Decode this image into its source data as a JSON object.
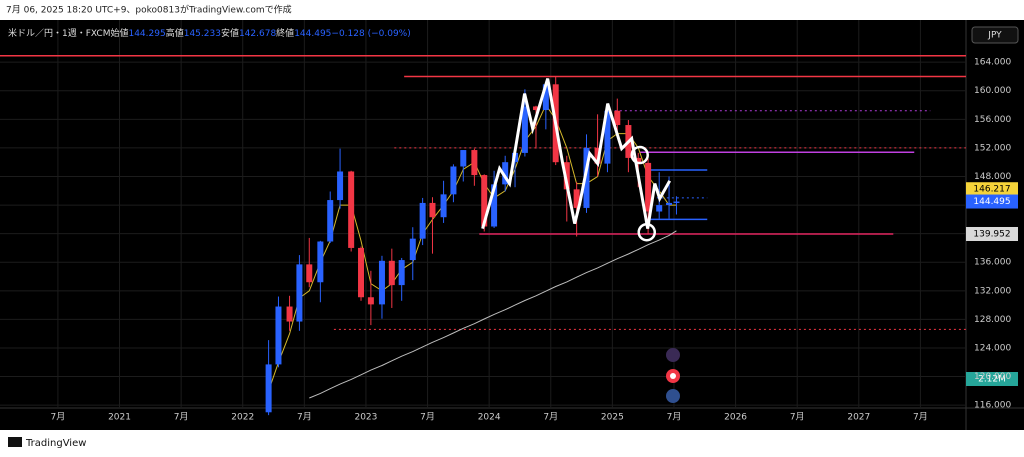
{
  "header": "7月 06, 2025 18:20 UTC+9、poko0813がTradingView.comで作成",
  "footer": "TradingView",
  "currency_button": "JPY",
  "chart_data": {
    "type": "candlestick",
    "legend": {
      "symbol": "米ドル／円・1週・FXCM",
      "open_label": "始値",
      "high_label": "高値",
      "low_label": "安値",
      "close_label": "終値",
      "change": "−0.128 (−0.09%)"
    },
    "x": [
      2022.21,
      2022.29,
      2022.38,
      2022.46,
      2022.54,
      2022.63,
      2022.71,
      2022.79,
      2022.88,
      2022.96,
      2023.04,
      2023.13,
      2023.21,
      2023.29,
      2023.38,
      2023.46,
      2023.54,
      2023.63,
      2023.71,
      2023.79,
      2023.88,
      2023.96,
      2024.04,
      2024.13,
      2024.21,
      2024.29,
      2024.38,
      2024.46,
      2024.54,
      2024.63,
      2024.71,
      2024.79,
      2024.88,
      2024.96,
      2025.04,
      2025.13,
      2025.21,
      2025.29,
      2025.38,
      2025.46,
      2025.52
    ],
    "open": [
      115.0,
      121.7,
      129.8,
      127.7,
      135.7,
      133.2,
      138.9,
      144.7,
      148.7,
      138.0,
      131.1,
      130.1,
      136.2,
      132.8,
      136.3,
      139.3,
      144.3,
      142.3,
      145.5,
      149.4,
      151.7,
      148.2,
      141.0,
      146.9,
      150.0,
      151.3,
      157.8,
      157.3,
      160.9,
      150.0,
      146.2,
      143.6,
      152.0,
      149.8,
      157.2,
      155.2,
      150.6,
      149.9,
      143.1,
      144.0,
      144.295
    ],
    "high": [
      125.1,
      131.2,
      131.3,
      137.0,
      139.4,
      139.0,
      145.9,
      151.9,
      148.8,
      138.2,
      134.8,
      136.9,
      137.9,
      136.6,
      140.9,
      145.0,
      145.1,
      147.4,
      149.7,
      151.7,
      151.9,
      148.3,
      148.8,
      150.9,
      151.97,
      160.2,
      157.9,
      161.3,
      161.95,
      150.9,
      147.2,
      153.9,
      156.7,
      158.1,
      158.9,
      155.9,
      151.3,
      150.5,
      148.6,
      148.0,
      145.233
    ],
    "low": [
      114.6,
      121.3,
      126.4,
      126.4,
      132.5,
      130.4,
      138.7,
      143.5,
      137.5,
      130.6,
      127.2,
      128.1,
      129.6,
      130.6,
      133.5,
      138.4,
      137.2,
      141.5,
      144.4,
      147.3,
      146.7,
      140.3,
      140.8,
      145.9,
      146.5,
      150.8,
      151.9,
      154.6,
      149.6,
      141.7,
      139.6,
      142.9,
      148.0,
      148.6,
      153.7,
      148.6,
      146.5,
      139.9,
      142.1,
      142.1,
      142.678
    ],
    "close": [
      121.7,
      129.8,
      127.7,
      135.7,
      133.2,
      138.9,
      144.7,
      148.7,
      138.0,
      131.1,
      130.1,
      136.2,
      132.8,
      136.3,
      139.3,
      144.3,
      142.3,
      145.5,
      149.4,
      151.7,
      148.2,
      141.0,
      146.9,
      150.0,
      151.3,
      157.8,
      157.3,
      160.9,
      150.0,
      146.2,
      143.6,
      152.0,
      149.8,
      157.2,
      155.2,
      150.6,
      149.9,
      143.1,
      144.0,
      144.3,
      144.495
    ],
    "up_color": "#2962ff",
    "down_color": "#f23645",
    "series": [
      {
        "color": "#d4b82a",
        "values": [
          118,
          122,
          126,
          131,
          132,
          136,
          139,
          144,
          144,
          139,
          133,
          132,
          133,
          135,
          136,
          140,
          142,
          144,
          146,
          149,
          150,
          147,
          145,
          146,
          149,
          153,
          155,
          158,
          156,
          152,
          147,
          147,
          148,
          153,
          154,
          154,
          152,
          148,
          146,
          144,
          144
        ]
      },
      {
        "color": "#bdbdbd",
        "values": [
          null,
          null,
          null,
          null,
          117.0,
          117.65,
          118.3,
          118.95,
          119.6,
          120.25,
          120.9,
          121.55,
          122.2,
          122.85,
          123.5,
          124.15,
          124.8,
          125.45,
          126.1,
          126.75,
          127.4,
          128.05,
          128.7,
          129.35,
          130.0,
          130.65,
          131.3,
          131.95,
          132.6,
          133.25,
          133.9,
          134.55,
          135.2,
          135.85,
          136.5,
          137.15,
          137.8,
          138.45,
          139.1,
          139.75,
          140.4
        ]
      }
    ],
    "zigzag": {
      "color": "#ffffff",
      "x": [
        2023.947,
        2024.085,
        2024.166,
        2024.288,
        2024.353,
        2024.475,
        2024.597,
        2024.694,
        2024.735,
        2024.816,
        2024.881,
        2024.962,
        2025.076,
        2025.157,
        2025.287,
        2025.344,
        2025.384,
        2025.465
      ],
      "y": [
        140.7,
        149.1,
        147.0,
        159.6,
        154.7,
        161.7,
        149.8,
        141.4,
        144.2,
        151.2,
        149.8,
        158.2,
        151.9,
        153.3,
        140.7,
        147.0,
        144.9,
        147.4
      ]
    },
    "circles": {
      "x": [
        2025.222,
        2025.279
      ],
      "y": [
        151.0,
        140.2
      ]
    },
    "levels": [
      {
        "value": 164.9,
        "from": 2020.03,
        "to": 2027.87,
        "color": "#f23645",
        "style": "solid"
      },
      {
        "value": 162.0,
        "from": 2023.31,
        "to": 2027.87,
        "color": "#f23645",
        "style": "solid"
      },
      {
        "value": 152.0,
        "from": 2023.23,
        "to": 2027.87,
        "color": "#f23645",
        "style": "dotted"
      },
      {
        "value": 126.6,
        "from": 2022.74,
        "to": 2027.87,
        "color": "#f23645",
        "style": "dotted"
      },
      {
        "value": 139.95,
        "from": 2023.92,
        "to": 2027.28,
        "color": "#e0245e",
        "style": "solid"
      },
      {
        "value": 157.2,
        "from": 2025.02,
        "to": 2027.58,
        "color": "#b03cd8",
        "style": "dotted"
      },
      {
        "value": 151.4,
        "from": 2025.22,
        "to": 2027.45,
        "color": "#c040e0",
        "style": "solid"
      },
      {
        "value": 148.9,
        "from": 2025.3,
        "to": 2025.77,
        "color": "#2962ff",
        "style": "solid"
      },
      {
        "value": 142.0,
        "from": 2025.3,
        "to": 2025.77,
        "color": "#2962ff",
        "style": "solid"
      },
      {
        "value": 145.0,
        "from": 2025.28,
        "to": 2025.77,
        "color": "#2962ff",
        "style": "dotted"
      }
    ],
    "price_markers": [
      {
        "value": 146.217,
        "color": "#f5d33a"
      },
      {
        "value": 139.952,
        "color": "#d9d9d9"
      }
    ],
    "volume_label": "2.12M",
    "ylim": [
      115.6,
      169.9
    ],
    "yticks": [
      116,
      120,
      124,
      128,
      132,
      136,
      140,
      144,
      148,
      152,
      156,
      160,
      164
    ],
    "ytick_labels": [
      "116.000",
      "120.000",
      "124.000",
      "128.000",
      "132.000",
      "136.000",
      "140.000",
      "144.000",
      "148.000",
      "152.000",
      "156.000",
      "160.000",
      "164.000"
    ],
    "xlim": [
      2020.03,
      2027.87
    ],
    "xticks": [
      {
        "value": 2020.5,
        "label": "7月"
      },
      {
        "value": 2021,
        "label": "2021"
      },
      {
        "value": 2021.5,
        "label": "7月"
      },
      {
        "value": 2022,
        "label": "2022"
      },
      {
        "value": 2022.5,
        "label": "7月"
      },
      {
        "value": 2023,
        "label": "2023"
      },
      {
        "value": 2023.5,
        "label": "7月"
      },
      {
        "value": 2024,
        "label": "2024"
      },
      {
        "value": 2024.5,
        "label": "7月"
      },
      {
        "value": 2025,
        "label": "2025"
      },
      {
        "value": 2025.5,
        "label": "7月"
      },
      {
        "value": 2026,
        "label": "2026"
      },
      {
        "value": 2026.5,
        "label": "7月"
      },
      {
        "value": 2027,
        "label": "2027"
      },
      {
        "value": 2027.5,
        "label": "7月"
      }
    ],
    "grid": true
  }
}
